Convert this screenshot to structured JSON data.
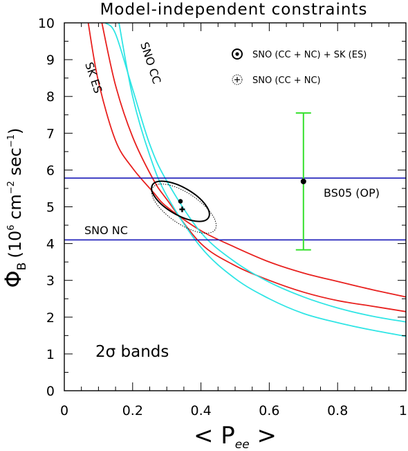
{
  "chart_data": {
    "type": "line",
    "title": "Model-independent constraints",
    "xlabel": {
      "main": "< P",
      "sub": "ee",
      "tail": " >"
    },
    "ylabel": {
      "phi": "Φ",
      "sub": "B",
      "units": "(10",
      "u6": "6",
      "cm": " cm",
      "um2": "−2",
      "sec": " sec",
      "um1": "−1",
      "close": ")"
    },
    "xlim": [
      0,
      1
    ],
    "ylim": [
      0,
      10
    ],
    "xticks": [
      "0",
      "0.2",
      "0.4",
      "0.6",
      "0.8",
      "1"
    ],
    "yticks": [
      "0",
      "1",
      "2",
      "3",
      "4",
      "5",
      "6",
      "7",
      "8",
      "9",
      "10"
    ],
    "colors": {
      "sk_es": "#e8201e",
      "sno_cc": "#2fe5e5",
      "sno_nc": "#1a1ab8",
      "bs05": "#34e02c",
      "contour": "#000000"
    },
    "series": [
      {
        "name": "SK ES",
        "label": "SK ES",
        "kind": "band_curve",
        "x": [
          0.07,
          0.1,
          0.15,
          0.2,
          0.26,
          0.3,
          0.4,
          0.5,
          0.6,
          0.7,
          0.8,
          0.9,
          1.0
        ],
        "y": [
          10.0,
          8.4,
          6.8,
          6.05,
          5.4,
          5.0,
          4.35,
          3.9,
          3.5,
          3.2,
          2.97,
          2.75,
          2.55
        ]
      },
      {
        "name": "SK ES",
        "label": "",
        "kind": "band_curve",
        "x": [
          0.11,
          0.15,
          0.2,
          0.26,
          0.3,
          0.4,
          0.5,
          0.6,
          0.7,
          0.8,
          0.9,
          1.0
        ],
        "y": [
          10.0,
          8.3,
          6.9,
          5.75,
          5.2,
          4.0,
          3.4,
          3.0,
          2.68,
          2.45,
          2.3,
          2.15
        ]
      },
      {
        "name": "SNO CC",
        "label": "SNO CC",
        "kind": "band_curve",
        "x": [
          0.12,
          0.15,
          0.2,
          0.25,
          0.3,
          0.4,
          0.5,
          0.6,
          0.7,
          0.8,
          0.9,
          1.0
        ],
        "y": [
          10.0,
          9.7,
          8.2,
          6.7,
          5.7,
          4.3,
          3.5,
          2.95,
          2.55,
          2.25,
          2.03,
          1.87
        ]
      },
      {
        "name": "SNO CC",
        "label": "",
        "kind": "band_curve",
        "x": [
          0.16,
          0.2,
          0.25,
          0.3,
          0.4,
          0.5,
          0.6,
          0.7,
          0.8,
          0.9,
          1.0
        ],
        "y": [
          10.0,
          8.0,
          6.4,
          5.3,
          3.9,
          3.05,
          2.5,
          2.1,
          1.85,
          1.65,
          1.48
        ]
      },
      {
        "name": "SNO NC",
        "label": "SNO NC",
        "kind": "hline",
        "y": 4.1
      },
      {
        "name": "SNO NC",
        "label": "",
        "kind": "hline",
        "y": 5.78
      }
    ],
    "bs05": {
      "label": "BS05 (OP)",
      "x": 0.7,
      "y": 5.69,
      "ylow": 3.83,
      "yhigh": 7.55
    },
    "best_fit_combined": {
      "x": 0.34,
      "y": 5.15
    },
    "best_fit_sno": {
      "x": 0.345,
      "y": 4.93
    },
    "contour_combined": {
      "cx": 0.34,
      "cy": 5.15,
      "a": 0.095,
      "b": 0.04,
      "angle_deg": -30
    },
    "contour_sno": {
      "cx": 0.35,
      "cy": 4.95,
      "a": 0.11,
      "b": 0.045,
      "angle_deg": -34
    },
    "legend": [
      {
        "symbol": "dot-circle",
        "text": "SNO (CC + NC) + SK (ES)"
      },
      {
        "symbol": "cross-circle",
        "text": "SNO (CC + NC)"
      }
    ],
    "legend_position": "top-right",
    "band_note": "2σ bands",
    "grid": false
  }
}
